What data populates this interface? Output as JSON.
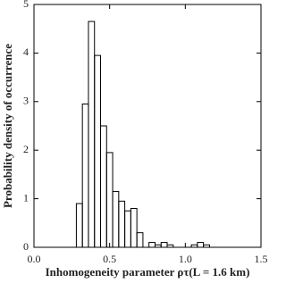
{
  "chart_data": {
    "type": "histogram",
    "x_label": "Inhomogeneity parameter ρτ(L = 1.6 km)",
    "y_label": "Probability density  of occurrence",
    "bins": [
      0.28,
      0.32,
      0.36,
      0.4,
      0.44,
      0.48,
      0.52,
      0.56,
      0.6,
      0.64,
      0.68,
      0.72,
      0.76,
      0.8,
      0.84,
      0.88,
      0.92,
      0.96,
      1.0,
      1.04,
      1.08,
      1.12,
      1.16,
      1.2
    ],
    "values": [
      0.9,
      2.95,
      4.65,
      3.95,
      2.5,
      1.95,
      1.15,
      0.95,
      0.75,
      0.8,
      0.3,
      0,
      0.1,
      0.05,
      0.1,
      0.05,
      0,
      0,
      0,
      0.05,
      0.1,
      0.05,
      0
    ],
    "color": "#000000",
    "xlim": [
      0,
      1.5
    ],
    "xticks": [
      {
        "value": 0,
        "label": "0.0"
      },
      {
        "value": 0.5,
        "label": "0.5"
      },
      {
        "value": 1,
        "label": "1.0"
      },
      {
        "value": 1.5,
        "label": "1.5"
      }
    ],
    "ylim": [
      0,
      5
    ],
    "yticks": [
      0,
      1,
      2,
      3,
      4,
      5
    ]
  }
}
